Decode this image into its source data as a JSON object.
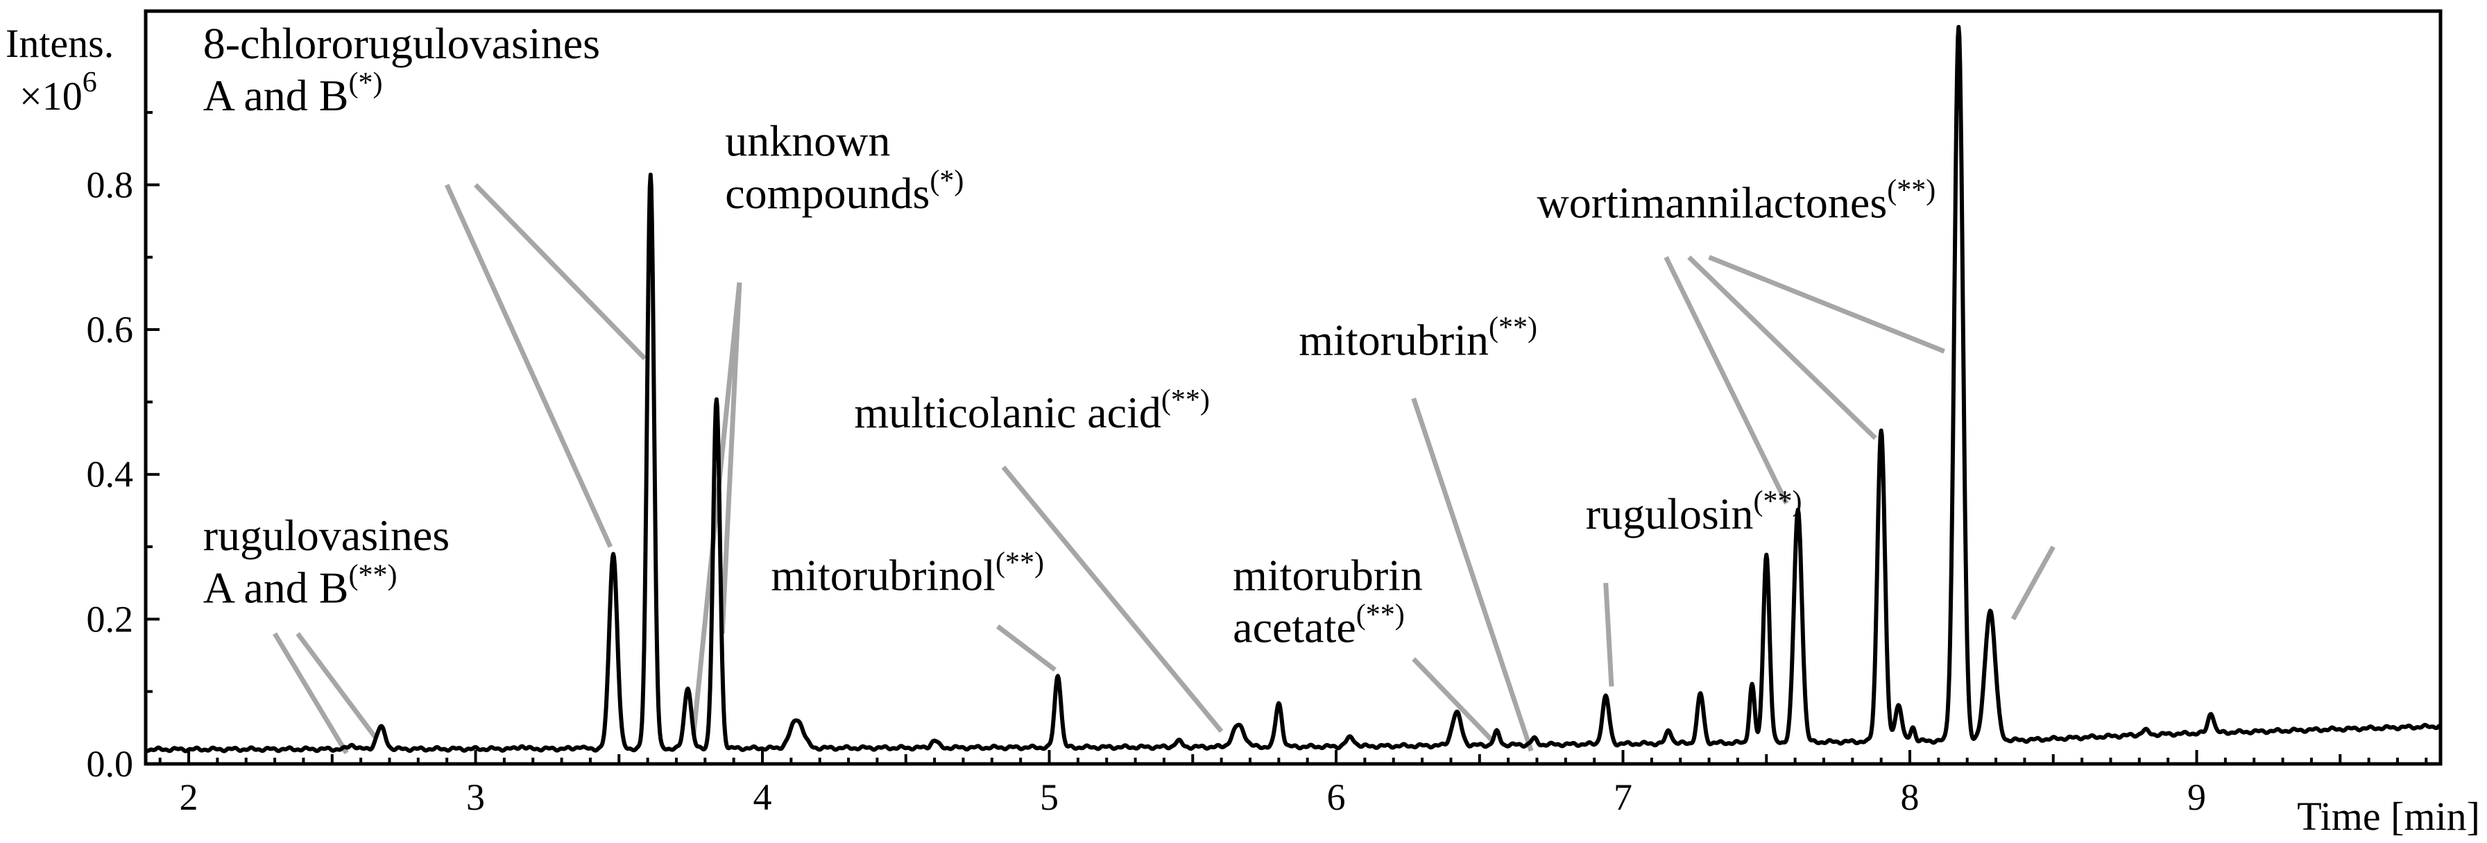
{
  "chart_data": {
    "type": "line",
    "title": "",
    "xlabel": "Time [min]",
    "ylabel": "Intens.",
    "ylabel_unit": "×10",
    "ylabel_exp": "6",
    "xlim": [
      1.85,
      9.85
    ],
    "ylim": [
      0.0,
      1.04
    ],
    "x_ticks": [
      2,
      3,
      4,
      5,
      6,
      7,
      8,
      9
    ],
    "x_tick_labels": [
      "2",
      "3",
      "4",
      "5",
      "6",
      "7",
      "8",
      "9"
    ],
    "y_ticks": [
      0.0,
      0.2,
      0.4,
      0.6,
      0.8
    ],
    "y_tick_labels": [
      "0.0",
      "0.2",
      "0.4",
      "0.6",
      "0.8"
    ],
    "grid": false,
    "legend": "none",
    "baseline": [
      [
        1.85,
        0.02
      ],
      [
        3.4,
        0.021
      ],
      [
        6.0,
        0.024
      ],
      [
        8.4,
        0.033
      ],
      [
        8.8,
        0.04
      ],
      [
        9.4,
        0.047
      ],
      [
        9.85,
        0.052
      ]
    ],
    "peaks": [
      {
        "x": 2.57,
        "height": 0.006,
        "width": 0.012
      },
      {
        "x": 2.67,
        "height": 0.03,
        "width": 0.015
      },
      {
        "x": 3.16,
        "height": 0.004,
        "width": 0.01
      },
      {
        "x": 3.36,
        "height": 0.003,
        "width": 0.01
      },
      {
        "x": 3.48,
        "height": 0.27,
        "width": 0.014
      },
      {
        "x": 3.61,
        "height": 0.795,
        "width": 0.012
      },
      {
        "x": 3.74,
        "height": 0.085,
        "width": 0.012
      },
      {
        "x": 3.84,
        "height": 0.48,
        "width": 0.012
      },
      {
        "x": 4.12,
        "height": 0.04,
        "width": 0.022
      },
      {
        "x": 4.6,
        "height": 0.01,
        "width": 0.012
      },
      {
        "x": 5.03,
        "height": 0.1,
        "width": 0.011
      },
      {
        "x": 5.45,
        "height": 0.008,
        "width": 0.012
      },
      {
        "x": 5.66,
        "height": 0.03,
        "width": 0.02
      },
      {
        "x": 5.8,
        "height": 0.06,
        "width": 0.011
      },
      {
        "x": 6.05,
        "height": 0.012,
        "width": 0.015
      },
      {
        "x": 6.42,
        "height": 0.045,
        "width": 0.016
      },
      {
        "x": 6.56,
        "height": 0.018,
        "width": 0.01
      },
      {
        "x": 6.69,
        "height": 0.008,
        "width": 0.01
      },
      {
        "x": 6.94,
        "height": 0.065,
        "width": 0.012
      },
      {
        "x": 7.16,
        "height": 0.018,
        "width": 0.01
      },
      {
        "x": 7.27,
        "height": 0.068,
        "width": 0.011
      },
      {
        "x": 7.45,
        "height": 0.08,
        "width": 0.009
      },
      {
        "x": 7.5,
        "height": 0.26,
        "width": 0.011
      },
      {
        "x": 7.61,
        "height": 0.32,
        "width": 0.014
      },
      {
        "x": 7.9,
        "height": 0.43,
        "width": 0.013
      },
      {
        "x": 7.96,
        "height": 0.05,
        "width": 0.012
      },
      {
        "x": 8.01,
        "height": 0.02,
        "width": 0.008
      },
      {
        "x": 8.17,
        "height": 0.985,
        "width": 0.015
      },
      {
        "x": 8.28,
        "height": 0.18,
        "width": 0.018
      },
      {
        "x": 8.82,
        "height": 0.006,
        "width": 0.012
      },
      {
        "x": 9.05,
        "height": 0.028,
        "width": 0.01
      }
    ],
    "annotations": [
      {
        "lines": [
          "8-chlororugulovasines",
          "A and B"
        ],
        "sup": "(*)",
        "tx": 2.05,
        "ty": 0.975,
        "pointers": [
          [
            2.9,
            0.8,
            3.47,
            0.3
          ],
          [
            3.0,
            0.8,
            3.59,
            0.56
          ]
        ]
      },
      {
        "lines": [
          "unknown",
          "compounds"
        ],
        "sup": "(*)",
        "tx": 3.87,
        "ty": 0.84,
        "pointers": [
          [
            3.92,
            0.665,
            3.76,
            0.04
          ],
          [
            3.92,
            0.665,
            3.86,
            0.18
          ]
        ]
      },
      {
        "lines": [
          "rugulovasines",
          "A and B"
        ],
        "sup": "(**)",
        "tx": 2.05,
        "ty": 0.295,
        "pointers": [
          [
            2.3,
            0.18,
            2.55,
            0.015
          ],
          [
            2.38,
            0.18,
            2.65,
            0.037
          ]
        ]
      },
      {
        "lines": [
          "mitorubrinol"
        ],
        "sup": "(**)",
        "tx": 4.03,
        "ty": 0.24,
        "pointers": [
          [
            4.82,
            0.19,
            5.02,
            0.13
          ]
        ]
      },
      {
        "lines": [
          "multicolanic acid"
        ],
        "sup": "(**)",
        "tx": 4.32,
        "ty": 0.465,
        "pointers": [
          [
            4.84,
            0.41,
            5.6,
            0.045
          ]
        ]
      },
      {
        "lines": [
          "mitorubrin",
          "acetate"
        ],
        "sup": "(**)",
        "tx": 5.64,
        "ty": 0.24,
        "pointers": [
          [
            6.27,
            0.145,
            6.55,
            0.03
          ]
        ]
      },
      {
        "lines": [
          "mitorubrin"
        ],
        "sup": "(**)",
        "tx": 5.87,
        "ty": 0.565,
        "pointers": [
          [
            6.27,
            0.505,
            6.68,
            0.018
          ]
        ]
      },
      {
        "lines": [
          "rugulosin"
        ],
        "sup": "(**)",
        "tx": 6.87,
        "ty": 0.325,
        "pointers": [
          [
            6.94,
            0.25,
            6.96,
            0.107
          ]
        ]
      },
      {
        "lines": [
          "wortimannilactones"
        ],
        "sup": "(**)",
        "tx": 6.7,
        "ty": 0.755,
        "pointers": [
          [
            7.15,
            0.7,
            7.57,
            0.36
          ],
          [
            7.23,
            0.7,
            7.88,
            0.45
          ],
          [
            7.3,
            0.7,
            8.12,
            0.57
          ]
        ]
      }
    ],
    "unlabeled_pointers": [
      [
        8.5,
        0.3,
        8.36,
        0.2
      ]
    ]
  }
}
